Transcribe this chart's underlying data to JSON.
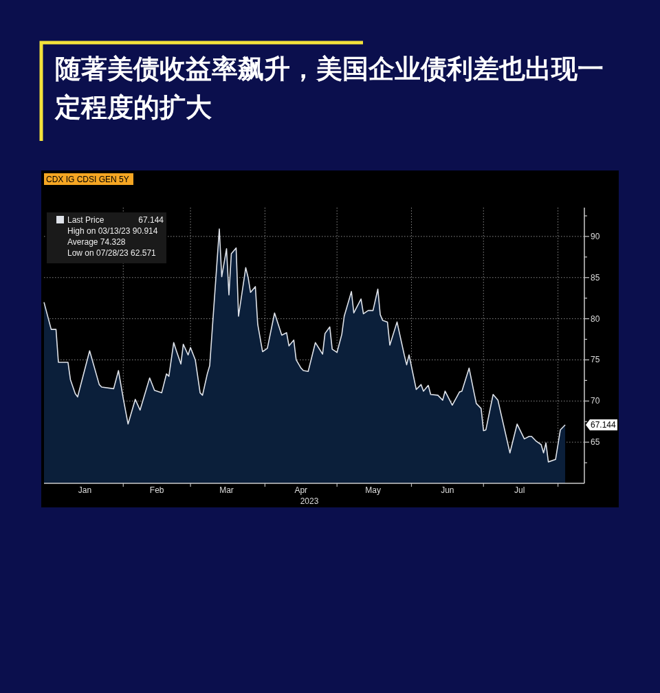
{
  "chart_data": {
    "type": "area",
    "title": "随著美债收益率飙升，美国企业债利差也出现一定程度的扩大",
    "subtitle": "CDX IG CDSI GEN 5Y",
    "xlabel": "2023",
    "x": [
      "2022-12-30",
      "2023-01-02",
      "2023-01-04",
      "2023-01-05",
      "2023-01-09",
      "2023-01-10",
      "2023-01-12",
      "2023-01-13",
      "2023-01-18",
      "2023-01-22",
      "2023-01-23",
      "2023-01-28",
      "2023-01-30",
      "2023-02-01",
      "2023-02-03",
      "2023-02-06",
      "2023-02-08",
      "2023-02-12",
      "2023-02-14",
      "2023-02-17",
      "2023-02-19",
      "2023-02-20",
      "2023-02-22",
      "2023-02-23",
      "2023-02-25",
      "2023-02-26",
      "2023-02-28",
      "2023-03-01",
      "2023-03-03",
      "2023-03-05",
      "2023-03-06",
      "2023-03-08",
      "2023-03-09",
      "2023-03-13",
      "2023-03-14",
      "2023-03-16",
      "2023-03-17",
      "2023-03-18",
      "2023-03-20",
      "2023-03-21",
      "2023-03-24",
      "2023-03-25",
      "2023-03-26",
      "2023-03-28",
      "2023-03-29",
      "2023-03-31",
      "2023-04-02",
      "2023-04-05",
      "2023-04-08",
      "2023-04-10",
      "2023-04-11",
      "2023-04-13",
      "2023-04-14",
      "2023-04-16",
      "2023-04-17",
      "2023-04-19",
      "2023-04-22",
      "2023-04-25",
      "2023-04-26",
      "2023-04-28",
      "2023-04-29",
      "2023-05-01",
      "2023-05-03",
      "2023-05-04",
      "2023-05-07",
      "2023-05-08",
      "2023-05-11",
      "2023-05-12",
      "2023-05-14",
      "2023-05-16",
      "2023-05-18",
      "2023-05-19",
      "2023-05-20",
      "2023-05-22",
      "2023-05-23",
      "2023-05-26",
      "2023-05-29",
      "2023-05-30",
      "2023-05-31",
      "2023-06-03",
      "2023-06-05",
      "2023-06-06",
      "2023-06-08",
      "2023-06-09",
      "2023-06-12",
      "2023-06-14",
      "2023-06-15",
      "2023-06-18",
      "2023-06-21",
      "2023-06-22",
      "2023-06-25",
      "2023-06-27",
      "2023-06-28",
      "2023-06-30",
      "2023-07-01",
      "2023-07-02",
      "2023-07-05",
      "2023-07-07",
      "2023-07-12",
      "2023-07-15",
      "2023-07-18",
      "2023-07-20",
      "2023-07-21",
      "2023-07-23",
      "2023-07-25",
      "2023-07-26",
      "2023-07-27",
      "2023-07-28",
      "2023-07-31",
      "2023-08-02",
      "2023-08-04"
    ],
    "series": [
      {
        "name": "Last Price",
        "color": "#dfe3ea",
        "values": [
          82.0,
          78.7,
          78.7,
          74.7,
          74.7,
          72.6,
          70.9,
          70.5,
          76.1,
          72.0,
          71.7,
          71.5,
          73.7,
          70.3,
          67.2,
          70.2,
          68.9,
          72.8,
          71.3,
          71.0,
          73.3,
          73.0,
          77.1,
          76.2,
          74.5,
          76.9,
          75.6,
          76.5,
          75.0,
          71.0,
          70.7,
          73.3,
          74.3,
          90.9,
          85.1,
          88.5,
          82.9,
          87.9,
          88.6,
          80.3,
          86.2,
          85.0,
          83.2,
          83.9,
          79.3,
          76.0,
          76.4,
          80.7,
          78.0,
          78.3,
          76.7,
          77.4,
          75.0,
          74.0,
          73.7,
          73.6,
          77.1,
          75.7,
          78.2,
          79.0,
          76.3,
          75.9,
          78.1,
          80.3,
          83.3,
          80.7,
          82.4,
          80.6,
          81.0,
          81.0,
          83.6,
          80.5,
          79.8,
          79.6,
          76.8,
          79.6,
          75.6,
          74.4,
          75.6,
          71.4,
          72.0,
          71.2,
          71.9,
          70.8,
          70.7,
          70.1,
          71.2,
          69.5,
          71.1,
          71.2,
          74.0,
          71.1,
          69.7,
          69.1,
          66.4,
          66.5,
          70.8,
          70.1,
          63.7,
          67.2,
          65.4,
          65.7,
          65.7,
          65.1,
          64.7,
          63.7,
          64.9,
          62.6,
          62.9,
          66.5,
          67.1
        ]
      }
    ],
    "xlim": [
      "2022-12-30",
      "2023-08-12"
    ],
    "xticks": [
      {
        "value": "2023-01-16",
        "label": "Jan"
      },
      {
        "value": "2023-02-01",
        "label": null
      },
      {
        "value": "2023-02-15",
        "label": "Feb"
      },
      {
        "value": "2023-03-01",
        "label": null
      },
      {
        "value": "2023-03-16",
        "label": "Mar"
      },
      {
        "value": "2023-04-01",
        "label": null
      },
      {
        "value": "2023-04-16",
        "label": "Apr"
      },
      {
        "value": "2023-05-01",
        "label": null
      },
      {
        "value": "2023-05-16",
        "label": "May"
      },
      {
        "value": "2023-06-01",
        "label": null
      },
      {
        "value": "2023-06-16",
        "label": "Jun"
      },
      {
        "value": "2023-07-01",
        "label": null
      },
      {
        "value": "2023-07-16",
        "label": "Jul"
      },
      {
        "value": "2023-08-01",
        "label": null
      }
    ],
    "ylim": [
      60,
      93.5
    ],
    "yticks": [
      {
        "value": 62.5,
        "label": null
      },
      65,
      {
        "value": 67.5,
        "label": null
      },
      70,
      {
        "value": 72.5,
        "label": null
      },
      75,
      {
        "value": 77.5,
        "label": null
      },
      80,
      {
        "value": 82.5,
        "label": null
      },
      85,
      {
        "value": 87.5,
        "label": null
      },
      90,
      {
        "value": 92.5,
        "label": null
      }
    ],
    "grid": true,
    "legend": "top left",
    "annotations": [
      "67.144",
      "High on 03/13/23 90.914",
      "Average 74.328",
      "Low on 07/28/23 62.571",
      "67.144"
    ]
  }
}
